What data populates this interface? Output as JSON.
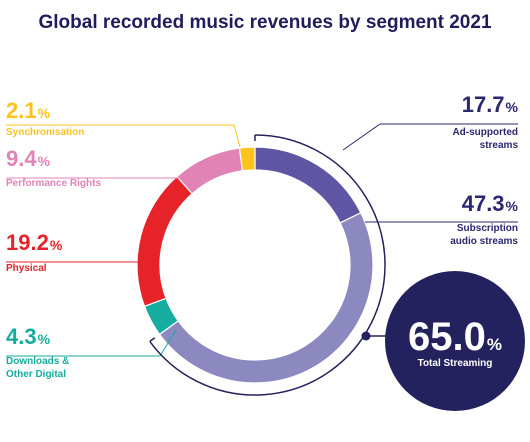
{
  "chart_data": {
    "type": "pie",
    "title": "Global recorded music revenues by segment 2021",
    "categories": [
      "Ad-supported streams",
      "Subscription audio streams",
      "Downloads & Other Digital",
      "Physical",
      "Performance Rights",
      "Synchronisation"
    ],
    "values": [
      17.7,
      47.3,
      4.3,
      19.2,
      9.4,
      2.1
    ],
    "value_labels": [
      "17.7",
      "47.3",
      "4.3",
      "19.2",
      "9.4",
      "2.1"
    ],
    "unit": "%",
    "label_lines": [
      [
        "Ad-supported",
        "streams"
      ],
      [
        "Subscription",
        "audio streams"
      ],
      [
        "Downloads &",
        "Other Digital"
      ],
      [
        "Physical"
      ],
      [
        "Performance Rights"
      ],
      [
        "Synchronisation"
      ]
    ],
    "colors": [
      "#5e56a2",
      "#8c88c0",
      "#14ad9f",
      "#e52329",
      "#e283b6",
      "#fdc31c"
    ],
    "label_colors": [
      "#2a2870",
      "#2a2870",
      "#14ad9f",
      "#e52329",
      "#e283b6",
      "#fdc31c"
    ],
    "callout": {
      "value": "65.0",
      "unit": "%",
      "label": "Total Streaming",
      "color": "#23225f"
    }
  }
}
